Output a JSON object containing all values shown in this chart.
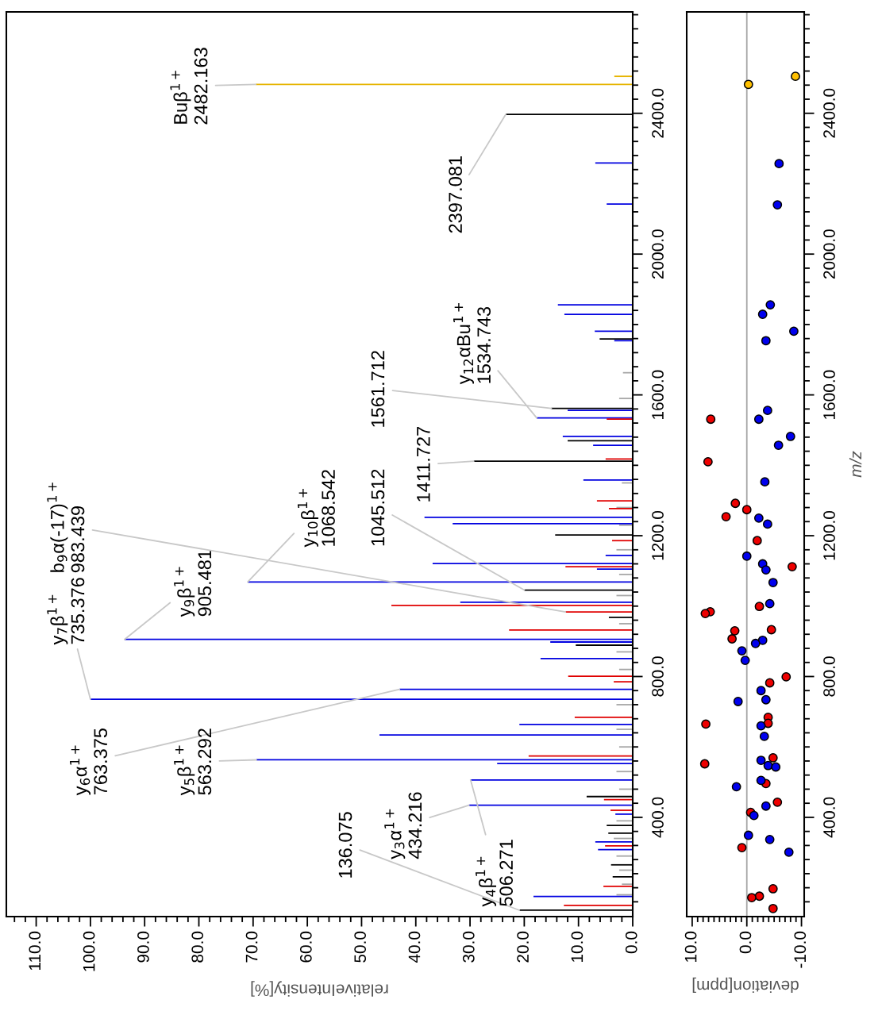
{
  "chart_data": [
    {
      "type": "bar",
      "orientation": "horizontal",
      "xlabel": "relativeIntensity[%]",
      "xlim": [
        115.5,
        0
      ],
      "ylim": [
        118,
        2688
      ],
      "grid": false,
      "xticks": [
        {
          "value": 0,
          "label": "0.0"
        },
        {
          "value": 2,
          "label": null
        },
        {
          "value": 4,
          "label": null
        },
        {
          "value": 6,
          "label": null
        },
        {
          "value": 8,
          "label": null
        },
        {
          "value": 10,
          "label": "10.0"
        },
        {
          "value": 12,
          "label": null
        },
        {
          "value": 14,
          "label": null
        },
        {
          "value": 16,
          "label": null
        },
        {
          "value": 18,
          "label": null
        },
        {
          "value": 20,
          "label": "20.0"
        },
        {
          "value": 22,
          "label": null
        },
        {
          "value": 24,
          "label": null
        },
        {
          "value": 26,
          "label": null
        },
        {
          "value": 28,
          "label": null
        },
        {
          "value": 30,
          "label": "30.0"
        },
        {
          "value": 32,
          "label": null
        },
        {
          "value": 34,
          "label": null
        },
        {
          "value": 36,
          "label": null
        },
        {
          "value": 38,
          "label": null
        },
        {
          "value": 40,
          "label": "40.0"
        },
        {
          "value": 42,
          "label": null
        },
        {
          "value": 44,
          "label": null
        },
        {
          "value": 46,
          "label": null
        },
        {
          "value": 48,
          "label": null
        },
        {
          "value": 50,
          "label": "50.0"
        },
        {
          "value": 52,
          "label": null
        },
        {
          "value": 54,
          "label": null
        },
        {
          "value": 56,
          "label": null
        },
        {
          "value": 58,
          "label": null
        },
        {
          "value": 60,
          "label": "60.0"
        },
        {
          "value": 62,
          "label": null
        },
        {
          "value": 64,
          "label": null
        },
        {
          "value": 66,
          "label": null
        },
        {
          "value": 68,
          "label": null
        },
        {
          "value": 70,
          "label": "70.0"
        },
        {
          "value": 72,
          "label": null
        },
        {
          "value": 74,
          "label": null
        },
        {
          "value": 76,
          "label": null
        },
        {
          "value": 78,
          "label": null
        },
        {
          "value": 80,
          "label": "80.0"
        },
        {
          "value": 82,
          "label": null
        },
        {
          "value": 84,
          "label": null
        },
        {
          "value": 86,
          "label": null
        },
        {
          "value": 88,
          "label": null
        },
        {
          "value": 90,
          "label": "90.0"
        },
        {
          "value": 92,
          "label": null
        },
        {
          "value": 94,
          "label": null
        },
        {
          "value": 96,
          "label": null
        },
        {
          "value": 98,
          "label": null
        },
        {
          "value": 100,
          "label": "100.0"
        },
        {
          "value": 102,
          "label": null
        },
        {
          "value": 104,
          "label": null
        },
        {
          "value": 106,
          "label": null
        },
        {
          "value": 108,
          "label": null
        },
        {
          "value": 110,
          "label": "110.0"
        },
        {
          "value": 112,
          "label": null
        },
        {
          "value": 114,
          "label": null
        }
      ],
      "yticks": [
        {
          "value": 160,
          "label": null
        },
        {
          "value": 200,
          "label": null
        },
        {
          "value": 240,
          "label": null
        },
        {
          "value": 280,
          "label": null
        },
        {
          "value": 320,
          "label": null
        },
        {
          "value": 360,
          "label": null
        },
        {
          "value": 400,
          "label": "400.0"
        },
        {
          "value": 440,
          "label": null
        },
        {
          "value": 480,
          "label": null
        },
        {
          "value": 520,
          "label": null
        },
        {
          "value": 560,
          "label": null
        },
        {
          "value": 600,
          "label": null
        },
        {
          "value": 640,
          "label": null
        },
        {
          "value": 680,
          "label": null
        },
        {
          "value": 720,
          "label": null
        },
        {
          "value": 760,
          "label": null
        },
        {
          "value": 800,
          "label": "800.0"
        },
        {
          "value": 840,
          "label": null
        },
        {
          "value": 880,
          "label": null
        },
        {
          "value": 920,
          "label": null
        },
        {
          "value": 960,
          "label": null
        },
        {
          "value": 1000,
          "label": null
        },
        {
          "value": 1040,
          "label": null
        },
        {
          "value": 1080,
          "label": null
        },
        {
          "value": 1120,
          "label": null
        },
        {
          "value": 1160,
          "label": null
        },
        {
          "value": 1200,
          "label": "1200.0"
        },
        {
          "value": 1240,
          "label": null
        },
        {
          "value": 1280,
          "label": null
        },
        {
          "value": 1320,
          "label": null
        },
        {
          "value": 1360,
          "label": null
        },
        {
          "value": 1400,
          "label": null
        },
        {
          "value": 1440,
          "label": null
        },
        {
          "value": 1480,
          "label": null
        },
        {
          "value": 1520,
          "label": null
        },
        {
          "value": 1560,
          "label": null
        },
        {
          "value": 1600,
          "label": "1600.0"
        },
        {
          "value": 1640,
          "label": null
        },
        {
          "value": 1680,
          "label": null
        },
        {
          "value": 1720,
          "label": null
        },
        {
          "value": 1760,
          "label": null
        },
        {
          "value": 1800,
          "label": null
        },
        {
          "value": 1840,
          "label": null
        },
        {
          "value": 1880,
          "label": null
        },
        {
          "value": 1920,
          "label": null
        },
        {
          "value": 1960,
          "label": null
        },
        {
          "value": 2000,
          "label": "2000.0"
        },
        {
          "value": 2040,
          "label": null
        },
        {
          "value": 2080,
          "label": null
        },
        {
          "value": 2120,
          "label": null
        },
        {
          "value": 2160,
          "label": null
        },
        {
          "value": 2200,
          "label": null
        },
        {
          "value": 2240,
          "label": null
        },
        {
          "value": 2280,
          "label": null
        },
        {
          "value": 2320,
          "label": null
        },
        {
          "value": 2360,
          "label": null
        },
        {
          "value": 2400,
          "label": "2400.0"
        },
        {
          "value": 2440,
          "label": null
        },
        {
          "value": 2480,
          "label": null
        },
        {
          "value": 2520,
          "label": null
        },
        {
          "value": 2560,
          "label": null
        },
        {
          "value": 2600,
          "label": null
        },
        {
          "value": 2640,
          "label": null
        },
        {
          "value": 2680,
          "label": null
        }
      ],
      "series": [
        {
          "color": "#a6a6a6",
          "x": [
            1663,
            1590,
            1350,
            1280,
            1230,
            1160,
            1090,
            1030,
            950,
            870,
            820,
            720,
            650,
            600,
            530,
            480,
            390,
            340,
            290,
            250,
            210,
            180
          ],
          "values": [
            1.8,
            2.5,
            2,
            3,
            2.5,
            3,
            2.5,
            3,
            2.5,
            3,
            2.5,
            3,
            3,
            2.5,
            3,
            2.5,
            3,
            3.5,
            3,
            2.5,
            2,
            3
          ]
        },
        {
          "color": "#000000",
          "x": [
            2397.081,
            1759,
            1561.712,
            1470,
            1411.727,
            1202,
            1045.512,
            968,
            889,
            459,
            377,
            355,
            265,
            231,
            136.075
          ],
          "values": [
            23.4,
            6.1,
            15,
            12,
            29.3,
            14.3,
            20,
            4.4,
            10.5,
            8.5,
            4.8,
            4.5,
            4,
            3.7,
            20.9
          ]
        },
        {
          "color": "#0000e0",
          "x": [
            2259,
            2142,
            1856,
            1829,
            1781,
            1754,
            1556,
            1534.743,
            1482,
            1457,
            1358,
            1252,
            1234,
            1144,
            1121,
            1105,
            1068.542,
            1011,
            905.481,
            898,
            851,
            763.375,
            735.376,
            664,
            634,
            563.292,
            553,
            506.271,
            434.216,
            409,
            330,
            308,
            175
          ],
          "values": [
            6.9,
            4.8,
            13.8,
            12.6,
            7.0,
            3.4,
            12,
            17.7,
            12.9,
            7.3,
            9.1,
            38.4,
            33.2,
            5,
            36.9,
            6.6,
            71,
            31.8,
            93.7,
            15.2,
            17,
            43,
            100,
            20.9,
            46.7,
            69.4,
            25,
            29.9,
            30.2,
            3.2,
            6.9,
            6.4,
            18.3
          ]
        },
        {
          "color": "#e00000",
          "x": [
            1531,
            1418,
            1299,
            1277,
            1186,
            1112,
            1002,
            983.439,
            932,
            801,
            785,
            684,
            574,
            450,
            420,
            319,
            204,
            150
          ],
          "values": [
            4.8,
            5,
            6.6,
            4.4,
            3.8,
            12.4,
            44.5,
            12.4,
            22.8,
            11.9,
            3.5,
            10.7,
            19.2,
            5.3,
            4.1,
            5.1,
            5.4,
            12.7
          ]
        },
        {
          "color": "#e6b400",
          "x": [
            2482.163,
            2505
          ],
          "values": [
            69.5,
            3.4
          ]
        }
      ],
      "annotations": [
        {
          "text": "Buβ$^{1+}$\n2482.163",
          "x": 69.5,
          "y": 2482.163
        },
        {
          "text": "2397.081",
          "x": 23.4,
          "y": 2397.081
        },
        {
          "text": "y$_{12}$αBu$^{1+}$\n1534.743",
          "x": 17.7,
          "y": 1534.743
        },
        {
          "text": "1561.712",
          "x": 15,
          "y": 1561.712
        },
        {
          "text": "1411.727",
          "x": 29.3,
          "y": 1411.727
        },
        {
          "text": "1045.512",
          "x": 20,
          "y": 1045.512
        },
        {
          "text": "y$_{10}$β$^{1+}$\n1068.542",
          "x": 71,
          "y": 1068.542
        },
        {
          "text": "y$_{9}$β$^{1+}$\n905.481",
          "x": 93.7,
          "y": 905.481
        },
        {
          "text": "b$_{9}$α(-17)$^{1+}$\n983.439",
          "x": 12.4,
          "y": 983.439
        },
        {
          "text": "y$_{7}$β$^{1+}$\n735.376",
          "x": 100,
          "y": 735.376
        },
        {
          "text": "y$_{6}$α$^{1+}$\n763.375",
          "x": 43,
          "y": 763.375
        },
        {
          "text": "y$_{5}$β$^{1+}$\n563.292",
          "x": 69.4,
          "y": 563.292
        },
        {
          "text": "y$_{3}$α$^{1+}$\n434.216",
          "x": 30.2,
          "y": 434.216
        },
        {
          "text": "136.075",
          "x": 20.9,
          "y": 136.075
        },
        {
          "text": "y$_{4}$β$^{1+}$\n506.271",
          "x": 29.9,
          "y": 506.271
        }
      ]
    },
    {
      "type": "scatter",
      "orientation": "horizontal",
      "xlabel": "deviation[ppm]",
      "ylabel": "m/z",
      "xlim": [
        11,
        -10.5
      ],
      "ylim": [
        118,
        2688
      ],
      "marker": "circle",
      "grid": false,
      "xticks": [
        {
          "value": -10,
          "label": "-10.0"
        },
        {
          "value": -9,
          "label": null
        },
        {
          "value": -8,
          "label": null
        },
        {
          "value": -7,
          "label": null
        },
        {
          "value": -6,
          "label": null
        },
        {
          "value": -5,
          "label": null
        },
        {
          "value": -4,
          "label": null
        },
        {
          "value": -3,
          "label": null
        },
        {
          "value": -2,
          "label": null
        },
        {
          "value": -1,
          "label": null
        },
        {
          "value": 0,
          "label": "0.0"
        },
        {
          "value": 1,
          "label": null
        },
        {
          "value": 2,
          "label": null
        },
        {
          "value": 3,
          "label": null
        },
        {
          "value": 4,
          "label": null
        },
        {
          "value": 5,
          "label": null
        },
        {
          "value": 6,
          "label": null
        },
        {
          "value": 7,
          "label": null
        },
        {
          "value": 8,
          "label": null
        },
        {
          "value": 9,
          "label": null
        },
        {
          "value": 10,
          "label": "10.0"
        }
      ],
      "yticks": [
        {
          "value": 160,
          "label": null
        },
        {
          "value": 200,
          "label": null
        },
        {
          "value": 240,
          "label": null
        },
        {
          "value": 280,
          "label": null
        },
        {
          "value": 320,
          "label": null
        },
        {
          "value": 360,
          "label": null
        },
        {
          "value": 400,
          "label": "400.0"
        },
        {
          "value": 440,
          "label": null
        },
        {
          "value": 480,
          "label": null
        },
        {
          "value": 520,
          "label": null
        },
        {
          "value": 560,
          "label": null
        },
        {
          "value": 600,
          "label": null
        },
        {
          "value": 640,
          "label": null
        },
        {
          "value": 680,
          "label": null
        },
        {
          "value": 720,
          "label": null
        },
        {
          "value": 760,
          "label": null
        },
        {
          "value": 800,
          "label": "800.0"
        },
        {
          "value": 840,
          "label": null
        },
        {
          "value": 880,
          "label": null
        },
        {
          "value": 920,
          "label": null
        },
        {
          "value": 960,
          "label": null
        },
        {
          "value": 1000,
          "label": null
        },
        {
          "value": 1040,
          "label": null
        },
        {
          "value": 1080,
          "label": null
        },
        {
          "value": 1120,
          "label": null
        },
        {
          "value": 1160,
          "label": null
        },
        {
          "value": 1200,
          "label": "1200.0"
        },
        {
          "value": 1240,
          "label": null
        },
        {
          "value": 1280,
          "label": null
        },
        {
          "value": 1320,
          "label": null
        },
        {
          "value": 1360,
          "label": null
        },
        {
          "value": 1400,
          "label": null
        },
        {
          "value": 1440,
          "label": null
        },
        {
          "value": 1480,
          "label": null
        },
        {
          "value": 1520,
          "label": null
        },
        {
          "value": 1560,
          "label": null
        },
        {
          "value": 1600,
          "label": "1600.0"
        },
        {
          "value": 1640,
          "label": null
        },
        {
          "value": 1680,
          "label": null
        },
        {
          "value": 1720,
          "label": null
        },
        {
          "value": 1760,
          "label": null
        },
        {
          "value": 1800,
          "label": null
        },
        {
          "value": 1840,
          "label": null
        },
        {
          "value": 1880,
          "label": null
        },
        {
          "value": 1920,
          "label": null
        },
        {
          "value": 1960,
          "label": null
        },
        {
          "value": 2000,
          "label": "2000.0"
        },
        {
          "value": 2040,
          "label": null
        },
        {
          "value": 2080,
          "label": null
        },
        {
          "value": 2120,
          "label": null
        },
        {
          "value": 2160,
          "label": null
        },
        {
          "value": 2200,
          "label": null
        },
        {
          "value": 2240,
          "label": null
        },
        {
          "value": 2280,
          "label": null
        },
        {
          "value": 2320,
          "label": null
        },
        {
          "value": 2360,
          "label": null
        },
        {
          "value": 2400,
          "label": "2400.0"
        },
        {
          "value": 2440,
          "label": null
        },
        {
          "value": 2480,
          "label": null
        },
        {
          "value": 2520,
          "label": null
        },
        {
          "value": 2560,
          "label": null
        },
        {
          "value": 2600,
          "label": null
        },
        {
          "value": 2640,
          "label": null
        },
        {
          "value": 2680,
          "label": null
        }
      ],
      "ref_lines": [
        {
          "axis": "x",
          "value": 0,
          "color": "#a6a6a6"
        }
      ],
      "series": [
        {
          "color": "#ee0000",
          "x": [
            1531,
            1410,
            1292,
            1274,
            1254,
            1186,
            1112,
            999,
            984,
            979,
            933,
            930,
            907,
            799,
            782,
            684,
            667,
            665,
            569,
            552,
            496,
            443,
            414,
            314,
            197,
            176,
            172,
            141
          ],
          "values": [
            6.6,
            7.1,
            2.1,
            0,
            3.8,
            -1.9,
            -8.3,
            -2.3,
            6.7,
            7.6,
            -4.5,
            2.2,
            2.7,
            -7.2,
            -4.2,
            -3.9,
            -3.9,
            7.5,
            -4.8,
            7.7,
            -3.5,
            -5.6,
            -0.7,
            0.9,
            -4.8,
            -2.3,
            -0.9,
            -4.8
          ]
        },
        {
          "color": "#0000ee",
          "x": [
            2257,
            2140,
            1856,
            1829,
            1781,
            1754,
            1556,
            1531,
            1482,
            1457,
            1353,
            1250,
            1233,
            1142,
            1120,
            1103,
            1067,
            1007,
            903,
            894,
            873,
            846,
            760,
            734,
            729,
            660,
            630,
            562,
            547,
            543,
            505,
            487,
            432,
            405,
            349,
            337,
            301
          ],
          "values": [
            -5.9,
            -5.6,
            -4.3,
            -2.9,
            -8.6,
            -3.5,
            -3.8,
            -2.2,
            -8.0,
            -5.8,
            -3.3,
            -2.2,
            -3.8,
            0,
            -2.9,
            -3.5,
            -4.8,
            -4.2,
            -2.9,
            -1.6,
            0.9,
            0.3,
            -2.6,
            -3.5,
            1.6,
            -2.6,
            -3.2,
            -2.6,
            -3.9,
            -5.3,
            -2.6,
            1.9,
            -3.5,
            -1.3,
            -0.3,
            -4.2,
            -7.7
          ]
        },
        {
          "color": "#ffc000",
          "x": [
            2482.163,
            2505
          ],
          "values": [
            -0.3,
            -8.9
          ]
        }
      ]
    }
  ]
}
